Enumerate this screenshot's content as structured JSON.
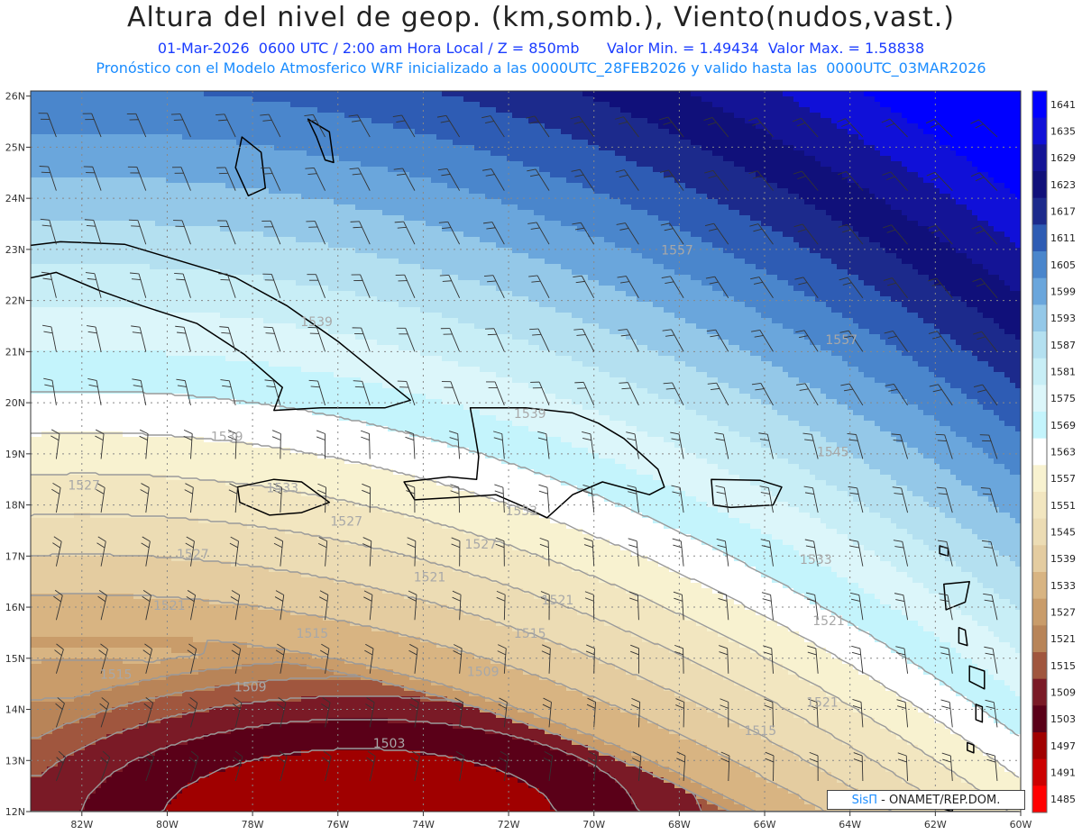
{
  "title": "Altura del nivel de geop. (km,somb.), Viento(nudos,vast.)",
  "subtitle_date": "01-Mar-2026  0600 UTC / 2:00 am Hora Local / Z = 850mb",
  "subtitle_minmax": "Valor Min. = 1.49434  Valor Max. = 1.58838",
  "subtitle_model": "Pronóstico con el Modelo Atmosferico WRF inicializado a las 0000UTC_28FEB2026 y valido hasta las  0000UTC_03MAR2026",
  "credit_brand": "SisΠ",
  "credit_text": "- ONAMET/REP.DOM.",
  "lat_labels": [
    "26N",
    "25N",
    "24N",
    "23N",
    "22N",
    "21N",
    "20N",
    "19N",
    "18N",
    "17N",
    "16N",
    "15N",
    "14N",
    "13N",
    "12N"
  ],
  "lon_labels": [
    "82W",
    "80W",
    "78W",
    "76W",
    "74W",
    "72W",
    "70W",
    "68W",
    "66W",
    "64W",
    "62W",
    "60W"
  ],
  "colorbar": {
    "values": [
      "1641",
      "1635",
      "1629",
      "1623",
      "1617",
      "1611",
      "1605",
      "1599",
      "1593",
      "1587",
      "1581",
      "1575",
      "1569",
      "1563",
      "1557",
      "1551",
      "1545",
      "1539",
      "1533",
      "1527",
      "1521",
      "1515",
      "1509",
      "1503",
      "1497",
      "1491",
      "1485"
    ],
    "colors": [
      "#0000ff",
      "#1010d8",
      "#141496",
      "#10107a",
      "#1c2a8c",
      "#2e5cb4",
      "#4a86cc",
      "#6aa6dc",
      "#94c8e8",
      "#b4e0f0",
      "#c8eef6",
      "#dcf6fa",
      "#c4f4fc",
      "#ffffff",
      "#f8f2d0",
      "#f2e6c0",
      "#ecdcb4",
      "#e4cca0",
      "#d8b482",
      "#c99c6a",
      "#b88458",
      "#a0563e",
      "#7a1a26",
      "#5a0018",
      "#a00000",
      "#cc0000",
      "#ff0000"
    ]
  },
  "contour_labels": [
    {
      "text": "1557",
      "lon": -68.05,
      "lat": 22.9
    },
    {
      "text": "1557",
      "lon": -64.2,
      "lat": 21.15
    },
    {
      "text": "1545",
      "lon": -64.4,
      "lat": 18.95
    },
    {
      "text": "1539",
      "lon": -76.5,
      "lat": 21.5
    },
    {
      "text": "1539",
      "lon": -78.6,
      "lat": 19.25
    },
    {
      "text": "1539",
      "lon": -71.5,
      "lat": 19.7
    },
    {
      "text": "1533",
      "lon": -77.3,
      "lat": 18.25
    },
    {
      "text": "1533",
      "lon": -71.7,
      "lat": 17.8
    },
    {
      "text": "1533",
      "lon": -64.8,
      "lat": 16.85
    },
    {
      "text": "1527",
      "lon": -81.95,
      "lat": 18.3
    },
    {
      "text": "1527",
      "lon": -79.4,
      "lat": 16.95
    },
    {
      "text": "1527",
      "lon": -75.8,
      "lat": 17.6
    },
    {
      "text": "1527",
      "lon": -72.65,
      "lat": 17.15
    },
    {
      "text": "1521",
      "lon": -79.95,
      "lat": 15.95
    },
    {
      "text": "1521",
      "lon": -73.85,
      "lat": 16.5
    },
    {
      "text": "1521",
      "lon": -70.85,
      "lat": 16.05
    },
    {
      "text": "1521",
      "lon": -64.5,
      "lat": 15.65
    },
    {
      "text": "1521",
      "lon": -64.65,
      "lat": 14.05
    },
    {
      "text": "1515",
      "lon": -76.6,
      "lat": 15.4
    },
    {
      "text": "1515",
      "lon": -71.5,
      "lat": 15.4
    },
    {
      "text": "1515",
      "lon": -81.2,
      "lat": 14.6
    },
    {
      "text": "1515",
      "lon": -66.1,
      "lat": 13.5
    },
    {
      "text": "1509",
      "lon": -78.05,
      "lat": 14.35
    },
    {
      "text": "1509",
      "lon": -72.6,
      "lat": 14.65
    },
    {
      "text": "1503",
      "lon": -74.8,
      "lat": 13.25
    }
  ]
}
